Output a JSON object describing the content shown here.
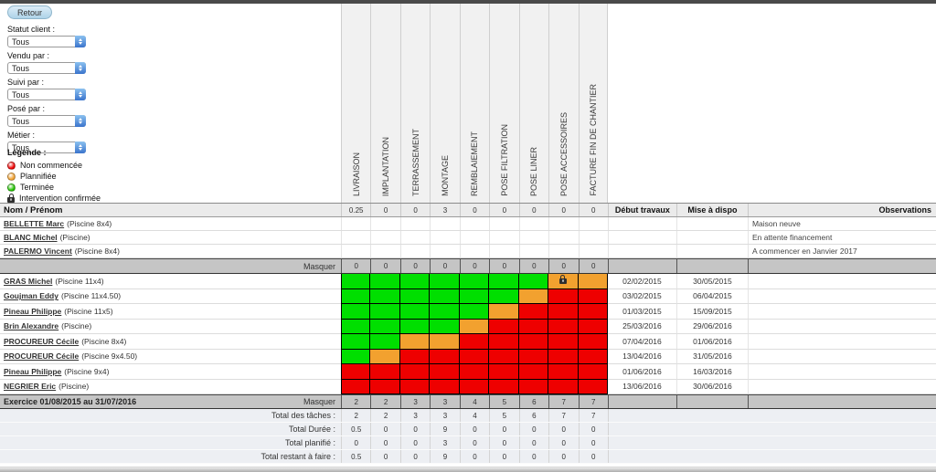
{
  "toolbar": {
    "retour_label": "Retour"
  },
  "filters": [
    {
      "key": "statut-client",
      "label": "Statut client :",
      "value": "Tous"
    },
    {
      "key": "vendu-par",
      "label": "Vendu par :",
      "value": "Tous"
    },
    {
      "key": "suivi-par",
      "label": "Suivi par :",
      "value": "Tous"
    },
    {
      "key": "pose-par",
      "label": "Posé par :",
      "value": "Tous"
    },
    {
      "key": "metier",
      "label": "Métier :",
      "value": "Tous"
    }
  ],
  "legend": {
    "title": "Légende :",
    "items": [
      {
        "key": "non-commencee",
        "type": "circle",
        "color": "#ee0000",
        "label": "Non commencée"
      },
      {
        "key": "plannifiee",
        "type": "circle",
        "color": "#f2a12f",
        "label": "Plannifiée"
      },
      {
        "key": "terminee",
        "type": "circle",
        "color": "#22c400",
        "label": "Terminée"
      },
      {
        "key": "intervention-confirmee",
        "type": "lock",
        "label": "Intervention confirmée"
      }
    ]
  },
  "columns": [
    "LIVRAISON",
    "IMPLANTATION",
    "TERRASSEMENT",
    "MONTAGE",
    "REMBLAIEMENT",
    "POSE FILTRATION",
    "POSE LINER",
    "POSE ACCESSOIRES",
    "FACTURE FIN DE CHANTIER"
  ],
  "header": {
    "name_label": "Nom / Prénom",
    "totals": [
      "0.25",
      "0",
      "0",
      "3",
      "0",
      "0",
      "0",
      "0",
      "0"
    ],
    "debut_label": "Début travaux",
    "dispo_label": "Mise à dispo",
    "obs_label": "Observations"
  },
  "clients": [
    {
      "name": "BELLETTE Marc",
      "detail": "(Piscine 8x4)",
      "observation": "Maison neuve"
    },
    {
      "name": "BLANC Michel",
      "detail": "(Piscine)",
      "observation": "En attente financement"
    },
    {
      "name": "PALERMO Vincent",
      "detail": "(Piscine 8x4)",
      "observation": "A commencer en Janvier 2017"
    }
  ],
  "masquer1": {
    "label": "Masquer",
    "values": [
      "0",
      "0",
      "0",
      "0",
      "0",
      "0",
      "0",
      "0",
      "0"
    ]
  },
  "projects": [
    {
      "name": "GRAS Michel",
      "detail": "(Piscine 11x4)",
      "cells": [
        "done",
        "done",
        "done",
        "done",
        "done",
        "done",
        "done",
        "planned_locked",
        "planned"
      ],
      "debut": "02/02/2015",
      "dispo": "30/05/2015"
    },
    {
      "name": "Goujman Eddy",
      "detail": "(Piscine 11x4.50)",
      "cells": [
        "done",
        "done",
        "done",
        "done",
        "done",
        "done",
        "planned",
        "not_started",
        "not_started"
      ],
      "debut": "03/02/2015",
      "dispo": "06/04/2015"
    },
    {
      "name": "Pineau Philippe",
      "detail": "(Piscine 11x5)",
      "cells": [
        "done",
        "done",
        "done",
        "done",
        "done",
        "planned",
        "not_started",
        "not_started",
        "not_started"
      ],
      "debut": "01/03/2015",
      "dispo": "15/09/2015"
    },
    {
      "name": "Brin Alexandre",
      "detail": "(Piscine)",
      "cells": [
        "done",
        "done",
        "done",
        "done",
        "planned",
        "not_started",
        "not_started",
        "not_started",
        "not_started"
      ],
      "debut": "25/03/2016",
      "dispo": "29/06/2016"
    },
    {
      "name": "PROCUREUR Cécile",
      "detail": "(Piscine 8x4)",
      "cells": [
        "done",
        "done",
        "planned",
        "planned",
        "not_started",
        "not_started",
        "not_started",
        "not_started",
        "not_started"
      ],
      "debut": "07/04/2016",
      "dispo": "01/06/2016"
    },
    {
      "name": "PROCUREUR Cécile",
      "detail": "(Piscine 9x4.50)",
      "cells": [
        "done",
        "planned",
        "not_started",
        "not_started",
        "not_started",
        "not_started",
        "not_started",
        "not_started",
        "not_started"
      ],
      "debut": "13/04/2016",
      "dispo": "31/05/2016"
    },
    {
      "name": "Pineau Philippe",
      "detail": "(Piscine 9x4)",
      "cells": [
        "not_started",
        "not_started",
        "not_started",
        "not_started",
        "not_started",
        "not_started",
        "not_started",
        "not_started",
        "not_started"
      ],
      "debut": "01/06/2016",
      "dispo": "16/03/2016"
    },
    {
      "name": "NEGRIER Eric",
      "detail": "(Piscine)",
      "cells": [
        "not_started",
        "not_started",
        "not_started",
        "not_started",
        "not_started",
        "not_started",
        "not_started",
        "not_started",
        "not_started"
      ],
      "debut": "13/06/2016",
      "dispo": "30/06/2016"
    }
  ],
  "exercice": {
    "label": "Exercice 01/08/2015 au 31/07/2016",
    "masquer": "Masquer",
    "values": [
      "2",
      "2",
      "3",
      "3",
      "4",
      "5",
      "6",
      "7",
      "7"
    ]
  },
  "totals": [
    {
      "label": "Total des tâches :",
      "values": [
        "2",
        "2",
        "3",
        "3",
        "4",
        "5",
        "6",
        "7",
        "7"
      ]
    },
    {
      "label": "Total Durée :",
      "values": [
        "0.5",
        "0",
        "0",
        "9",
        "0",
        "0",
        "0",
        "0",
        "0"
      ]
    },
    {
      "label": "Total planifié :",
      "values": [
        "0",
        "0",
        "0",
        "3",
        "0",
        "0",
        "0",
        "0",
        "0"
      ]
    },
    {
      "label": "Total restant à faire :",
      "values": [
        "0.5",
        "0",
        "0",
        "9",
        "0",
        "0",
        "0",
        "0",
        "0"
      ]
    }
  ],
  "colors": {
    "done": "#00df00",
    "planned": "#f2a12f",
    "not_started": "#ee0000"
  }
}
